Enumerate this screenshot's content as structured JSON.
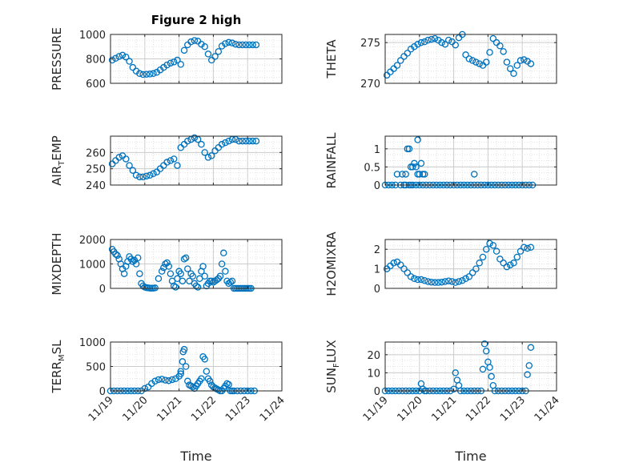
{
  "figure": {
    "title": "Figure 2 high",
    "marker_color": "#0072BD",
    "axis_color": "#262626",
    "grid_color": "#d9d9d9"
  },
  "chart_data": [
    {
      "id": "pressure",
      "type": "scatter",
      "ylabel": {
        "pre": "PRESSURE",
        "sub": "",
        "post": ""
      },
      "title": "Figure 2 high",
      "xlim": [
        0,
        5
      ],
      "ylim": [
        600,
        1000
      ],
      "yticks": [
        600,
        800,
        1000
      ],
      "ytick_labels": [
        "600",
        "800",
        "1000"
      ],
      "xtick_labels": [],
      "x": [
        0.05,
        0.15,
        0.25,
        0.35,
        0.45,
        0.55,
        0.65,
        0.75,
        0.85,
        0.95,
        1.05,
        1.15,
        1.25,
        1.35,
        1.45,
        1.55,
        1.65,
        1.75,
        1.85,
        1.95,
        2.05,
        2.15,
        2.25,
        2.35,
        2.45,
        2.55,
        2.65,
        2.75,
        2.85,
        2.95,
        3.05,
        3.15,
        3.25,
        3.35,
        3.45,
        3.55,
        3.65,
        3.75,
        3.85,
        3.95,
        4.05,
        4.15,
        4.25
      ],
      "y": [
        790,
        805,
        820,
        830,
        815,
        780,
        730,
        700,
        680,
        672,
        674,
        676,
        680,
        690,
        710,
        730,
        750,
        765,
        775,
        790,
        755,
        870,
        915,
        940,
        950,
        945,
        920,
        900,
        840,
        790,
        820,
        860,
        905,
        925,
        935,
        930,
        920,
        915,
        915,
        915,
        915,
        915,
        915
      ]
    },
    {
      "id": "theta",
      "type": "scatter",
      "ylabel": {
        "pre": "THETA",
        "sub": "",
        "post": ""
      },
      "xlim": [
        0,
        5
      ],
      "ylim": [
        270,
        276
      ],
      "yticks": [
        270,
        275
      ],
      "ytick_labels": [
        "270",
        "275"
      ],
      "xtick_labels": [],
      "x": [
        0.05,
        0.15,
        0.25,
        0.35,
        0.45,
        0.55,
        0.65,
        0.75,
        0.85,
        0.95,
        1.05,
        1.15,
        1.25,
        1.35,
        1.45,
        1.55,
        1.65,
        1.75,
        1.85,
        1.95,
        2.05,
        2.15,
        2.25,
        2.35,
        2.45,
        2.55,
        2.65,
        2.75,
        2.85,
        2.95,
        3.05,
        3.15,
        3.25,
        3.35,
        3.45,
        3.55,
        3.65,
        3.75,
        3.85,
        3.95,
        4.05,
        4.15,
        4.25
      ],
      "y": [
        271.0,
        271.4,
        271.8,
        272.2,
        272.8,
        273.3,
        273.7,
        274.2,
        274.5,
        274.8,
        275.0,
        275.1,
        275.3,
        275.4,
        275.5,
        275.3,
        275.0,
        274.8,
        275.3,
        275.1,
        274.7,
        275.6,
        276.0,
        273.5,
        273.0,
        272.8,
        272.6,
        272.4,
        272.2,
        272.6,
        273.8,
        275.5,
        275.0,
        274.6,
        273.9,
        272.6,
        271.8,
        271.2,
        272.2,
        272.8,
        272.9,
        272.7,
        272.4
      ]
    },
    {
      "id": "air_temp",
      "type": "scatter",
      "ylabel": {
        "pre": "AIR",
        "sub": "T",
        "post": "EMP"
      },
      "xlim": [
        0,
        5
      ],
      "ylim": [
        240,
        270
      ],
      "yticks": [
        240,
        250,
        260
      ],
      "ytick_labels": [
        "240",
        "250",
        "260"
      ],
      "xtick_labels": [],
      "x": [
        0.05,
        0.15,
        0.25,
        0.35,
        0.45,
        0.55,
        0.65,
        0.75,
        0.85,
        0.95,
        1.05,
        1.15,
        1.25,
        1.35,
        1.45,
        1.55,
        1.65,
        1.75,
        1.85,
        1.95,
        2.05,
        2.15,
        2.25,
        2.35,
        2.45,
        2.55,
        2.65,
        2.75,
        2.85,
        2.95,
        3.05,
        3.15,
        3.25,
        3.35,
        3.45,
        3.55,
        3.65,
        3.75,
        3.85,
        3.95,
        4.05,
        4.15,
        4.25
      ],
      "y": [
        253,
        255,
        257,
        258,
        256,
        252,
        249,
        246,
        245,
        245,
        245.5,
        246,
        247,
        248,
        250,
        252,
        254,
        255,
        256,
        252,
        263,
        265,
        267,
        268,
        269,
        268,
        265,
        260,
        257,
        258,
        261,
        263,
        265,
        266,
        267,
        268,
        268,
        267,
        267,
        267,
        267,
        267,
        267
      ]
    },
    {
      "id": "rainfall",
      "type": "scatter",
      "ylabel": {
        "pre": "RAINFALL",
        "sub": "",
        "post": ""
      },
      "xlim": [
        0,
        5
      ],
      "ylim": [
        0,
        1.35
      ],
      "yticks": [
        0,
        0.5,
        1
      ],
      "ytick_labels": [
        "0",
        "0.5",
        "1"
      ],
      "xtick_labels": [],
      "x": [
        0.0,
        0.1,
        0.2,
        0.3,
        0.35,
        0.45,
        0.5,
        0.55,
        0.6,
        0.65,
        0.7,
        0.75,
        0.8,
        0.85,
        0.9,
        0.95,
        1.0,
        1.05,
        1.1,
        1.15,
        1.2,
        1.3,
        1.4,
        1.5,
        1.6,
        1.7,
        1.8,
        1.9,
        2.0,
        2.1,
        2.2,
        2.3,
        2.4,
        2.5,
        2.6,
        2.7,
        2.8,
        2.9,
        3.0,
        3.1,
        3.2,
        3.3,
        3.4,
        3.5,
        3.6,
        3.7,
        3.8,
        3.9,
        4.0,
        4.1,
        4.2,
        4.3,
        0.6,
        0.7,
        0.55,
        0.75,
        0.8,
        0.9,
        1.0,
        1.1,
        0.95,
        2.6
      ],
      "y": [
        0,
        0,
        0,
        0,
        0.3,
        0,
        0.3,
        0,
        0.3,
        1.0,
        1.0,
        0.5,
        0.5,
        0.6,
        0.5,
        0.3,
        0.3,
        0.6,
        0.3,
        0.3,
        0,
        0,
        0,
        0,
        0,
        0,
        0,
        0,
        0,
        0,
        0,
        0,
        0,
        0,
        0,
        0,
        0,
        0,
        0,
        0,
        0,
        0,
        0,
        0,
        0,
        0,
        0,
        0,
        0,
        0,
        0,
        0,
        0,
        0,
        0,
        0,
        0,
        0,
        0,
        0,
        1.25,
        0.3
      ]
    },
    {
      "id": "mixdepth",
      "type": "scatter",
      "ylabel": {
        "pre": "MIXDEPTH",
        "sub": "",
        "post": ""
      },
      "xlim": [
        0,
        5
      ],
      "ylim": [
        0,
        2000
      ],
      "yticks": [
        0,
        1000,
        2000
      ],
      "ytick_labels": [
        "0",
        "1000",
        "2000"
      ],
      "xtick_labels": [],
      "x": [
        0.05,
        0.1,
        0.15,
        0.2,
        0.25,
        0.3,
        0.35,
        0.4,
        0.45,
        0.5,
        0.55,
        0.6,
        0.65,
        0.7,
        0.75,
        0.8,
        0.85,
        0.9,
        0.95,
        1.0,
        1.05,
        1.1,
        1.15,
        1.2,
        1.25,
        1.3,
        1.4,
        1.5,
        1.55,
        1.6,
        1.65,
        1.7,
        1.75,
        1.8,
        1.85,
        1.9,
        1.95,
        2.0,
        2.05,
        2.1,
        2.15,
        2.2,
        2.25,
        2.3,
        2.35,
        2.4,
        2.45,
        2.5,
        2.55,
        2.6,
        2.65,
        2.7,
        2.75,
        2.8,
        2.85,
        2.9,
        2.95,
        3.0,
        3.05,
        3.1,
        3.15,
        3.2,
        3.25,
        3.3,
        3.35,
        3.4,
        3.45,
        3.5,
        3.55,
        3.6,
        3.65,
        3.7,
        3.75,
        3.8,
        3.85,
        3.9,
        3.95,
        4.0,
        4.05,
        4.1
      ],
      "y": [
        1600,
        1500,
        1400,
        1350,
        1200,
        1000,
        800,
        600,
        900,
        1100,
        1300,
        1200,
        1100,
        1150,
        1000,
        1250,
        600,
        200,
        100,
        50,
        30,
        20,
        10,
        10,
        10,
        20,
        400,
        700,
        850,
        1000,
        1050,
        900,
        600,
        300,
        100,
        50,
        400,
        700,
        600,
        300,
        1200,
        1250,
        800,
        300,
        600,
        500,
        200,
        100,
        50,
        400,
        700,
        900,
        500,
        100,
        200,
        300,
        300,
        250,
        300,
        350,
        400,
        500,
        1000,
        1450,
        700,
        300,
        200,
        250,
        300,
        0,
        0,
        0,
        0,
        0,
        0,
        0,
        0,
        0,
        0,
        0
      ]
    },
    {
      "id": "h2omixra",
      "type": "scatter",
      "ylabel": {
        "pre": "H2OMIXRA",
        "sub": "",
        "post": ""
      },
      "xlim": [
        0,
        5
      ],
      "ylim": [
        0,
        2.5
      ],
      "yticks": [
        0,
        1,
        2
      ],
      "ytick_labels": [
        "0",
        "1",
        "2"
      ],
      "xtick_labels": [],
      "x": [
        0.05,
        0.15,
        0.25,
        0.35,
        0.45,
        0.55,
        0.65,
        0.75,
        0.85,
        0.95,
        1.05,
        1.15,
        1.25,
        1.35,
        1.45,
        1.55,
        1.65,
        1.75,
        1.85,
        1.95,
        2.05,
        2.15,
        2.25,
        2.35,
        2.45,
        2.55,
        2.65,
        2.75,
        2.85,
        2.95,
        3.05,
        3.15,
        3.25,
        3.35,
        3.45,
        3.55,
        3.65,
        3.75,
        3.85,
        3.95,
        4.05,
        4.15,
        4.25
      ],
      "y": [
        1.0,
        1.15,
        1.3,
        1.35,
        1.2,
        1.0,
        0.8,
        0.6,
        0.5,
        0.45,
        0.45,
        0.4,
        0.35,
        0.32,
        0.3,
        0.3,
        0.32,
        0.35,
        0.38,
        0.35,
        0.3,
        0.35,
        0.4,
        0.5,
        0.6,
        0.8,
        1.0,
        1.3,
        1.6,
        2.0,
        2.3,
        2.2,
        1.9,
        1.5,
        1.3,
        1.1,
        1.2,
        1.3,
        1.6,
        1.9,
        2.1,
        2.05,
        2.1
      ]
    },
    {
      "id": "terr_msl",
      "type": "scatter",
      "ylabel": {
        "pre": "TERR",
        "sub": "M",
        "post": "SL"
      },
      "xlim": [
        0,
        5
      ],
      "ylim": [
        0,
        1000
      ],
      "yticks": [
        0,
        500,
        1000
      ],
      "ytick_labels": [
        "0",
        "500",
        "1000"
      ],
      "xtick_labels": [
        "11/19",
        "11/20",
        "11/21",
        "11/22",
        "11/23",
        "11/24"
      ],
      "x": [
        0.0,
        0.1,
        0.2,
        0.3,
        0.4,
        0.5,
        0.6,
        0.7,
        0.8,
        0.9,
        1.0,
        1.1,
        1.2,
        1.3,
        1.4,
        1.5,
        1.6,
        1.7,
        1.8,
        1.9,
        2.0,
        2.05,
        2.1,
        2.15,
        2.2,
        2.25,
        2.3,
        2.35,
        2.4,
        2.45,
        2.5,
        2.55,
        2.6,
        2.65,
        2.7,
        2.75,
        2.8,
        2.85,
        2.9,
        2.95,
        3.0,
        3.05,
        3.1,
        3.15,
        3.2,
        3.25,
        3.3,
        3.35,
        3.4,
        3.45,
        3.5,
        3.55,
        3.6,
        3.7,
        3.8,
        3.9,
        4.0,
        4.1,
        4.2,
        2.05,
        2.12
      ],
      "y": [
        0,
        0,
        0,
        0,
        0,
        0,
        0,
        0,
        0,
        0,
        50,
        80,
        150,
        200,
        230,
        240,
        220,
        210,
        230,
        250,
        300,
        400,
        600,
        850,
        500,
        200,
        120,
        100,
        80,
        50,
        100,
        150,
        200,
        250,
        700,
        650,
        400,
        250,
        200,
        120,
        80,
        60,
        40,
        20,
        0,
        0,
        50,
        100,
        150,
        130,
        0,
        0,
        0,
        0,
        0,
        0,
        0,
        0,
        0,
        350,
        800
      ]
    },
    {
      "id": "sun_flux",
      "type": "scatter",
      "ylabel": {
        "pre": "SUN",
        "sub": "F",
        "post": "LUX"
      },
      "xlim": [
        0,
        5
      ],
      "ylim": [
        0,
        27
      ],
      "yticks": [
        0,
        10,
        20
      ],
      "ytick_labels": [
        "0",
        "10",
        "20"
      ],
      "xtick_labels": [
        "11/19",
        "11/20",
        "11/21",
        "11/22",
        "11/23",
        "11/24"
      ],
      "x": [
        0.0,
        0.1,
        0.2,
        0.3,
        0.4,
        0.5,
        0.6,
        0.7,
        0.8,
        0.9,
        1.0,
        1.05,
        1.1,
        1.15,
        1.2,
        1.3,
        1.4,
        1.5,
        1.6,
        1.7,
        1.8,
        1.9,
        2.0,
        2.05,
        2.1,
        2.15,
        2.2,
        2.3,
        2.4,
        2.5,
        2.6,
        2.7,
        2.8,
        2.85,
        2.9,
        2.95,
        3.0,
        3.05,
        3.1,
        3.15,
        3.2,
        3.3,
        3.4,
        3.5,
        3.6,
        3.7,
        3.8,
        3.9,
        4.0,
        4.1,
        4.15,
        4.2,
        4.25
      ],
      "y": [
        0,
        0,
        0,
        0,
        0,
        0,
        0,
        0,
        0,
        0,
        0,
        4,
        1,
        0,
        0,
        0,
        0,
        0,
        0,
        0,
        0,
        0,
        1,
        10,
        6,
        3,
        0,
        0,
        0,
        0,
        0,
        0,
        0,
        12,
        26,
        22,
        16,
        13,
        8,
        3,
        0,
        0,
        0,
        0,
        0,
        0,
        0,
        0,
        0,
        0,
        9,
        14,
        24
      ]
    }
  ],
  "xlabel": "Time"
}
